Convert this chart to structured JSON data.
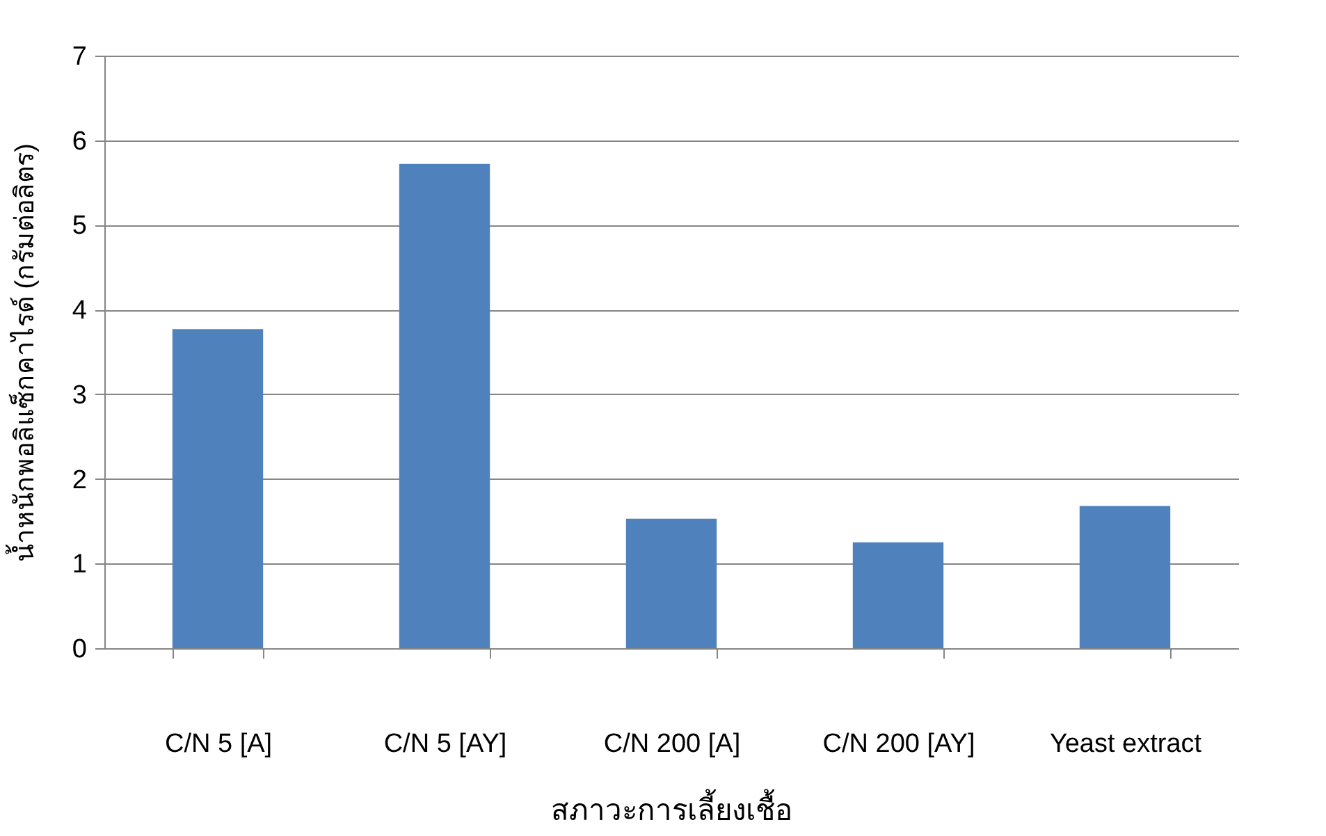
{
  "chart_data": {
    "type": "bar",
    "xlabel": "สภาวะการเลี้ยงเชื้อ",
    "ylabel": "น้ำหนักพอลิแซ็กคาไรด์ (กรัมต่อลิตร)",
    "categories": [
      "C/N 5 [A]",
      "C/N 5 [AY]",
      "C/N 200 [A]",
      "C/N 200 [AY]",
      "Yeast extract"
    ],
    "series": [
      {
        "color": "#4f81bd",
        "values": [
          3.77,
          5.72,
          1.53,
          1.25,
          1.68
        ]
      }
    ],
    "ylim": [
      0,
      7
    ],
    "yticks": [
      0,
      1,
      2,
      3,
      4,
      5,
      6,
      7
    ],
    "grid": "y"
  }
}
